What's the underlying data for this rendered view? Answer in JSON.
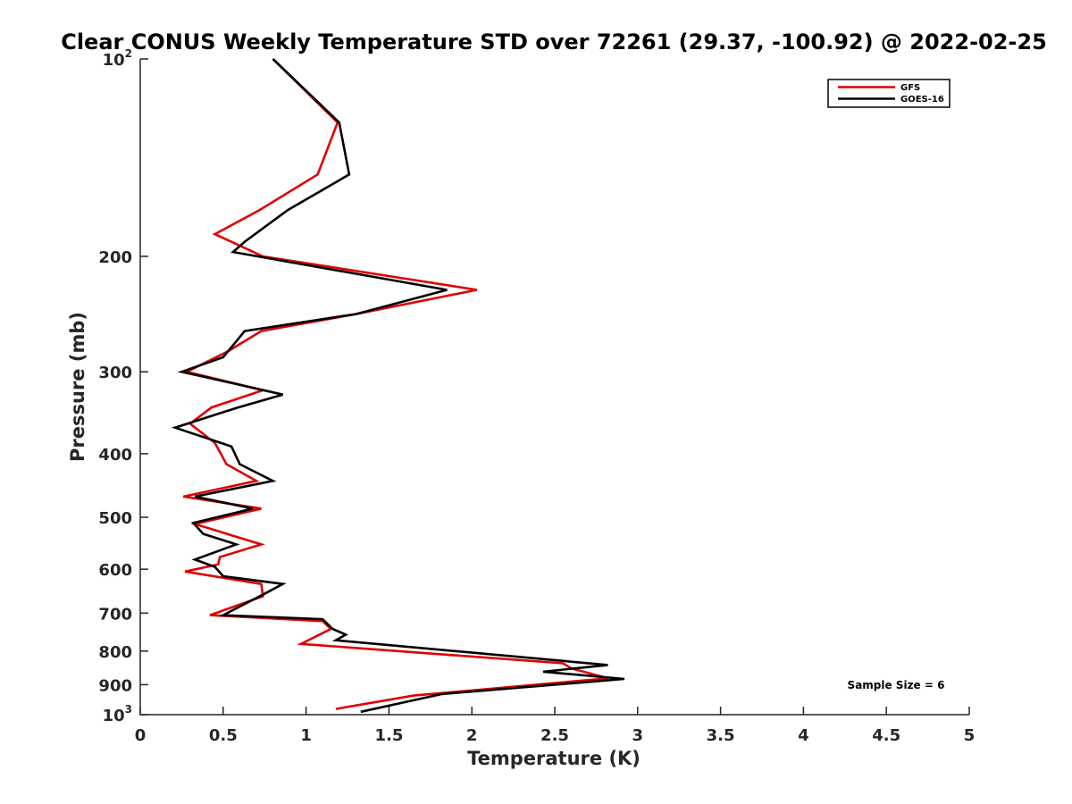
{
  "chart_data": {
    "type": "line",
    "title": "Clear CONUS Weekly Temperature STD over 72261 (29.37, -100.92) @ 2022-02-25",
    "xlabel": "Temperature (K)",
    "ylabel": "Pressure (mb)",
    "xlim": [
      0,
      5
    ],
    "ylim": [
      100,
      1000
    ],
    "y_scale": "log",
    "y_reversed": true,
    "grid": false,
    "legend_placement": "top-right",
    "x_ticks": [
      "0",
      "0.5",
      "1",
      "1.5",
      "2",
      "2.5",
      "3",
      "3.5",
      "4",
      "4.5",
      "5"
    ],
    "y_ticks": [
      {
        "value": 100,
        "label": "10",
        "exp": "2"
      },
      {
        "value": 200,
        "label": "200"
      },
      {
        "value": 300,
        "label": "300"
      },
      {
        "value": 400,
        "label": "400"
      },
      {
        "value": 500,
        "label": "500"
      },
      {
        "value": 600,
        "label": "600"
      },
      {
        "value": 700,
        "label": "700"
      },
      {
        "value": 800,
        "label": "800"
      },
      {
        "value": 900,
        "label": "900"
      },
      {
        "value": 1000,
        "label": "10",
        "exp": "3"
      }
    ],
    "annotation": "Sample Size = 6",
    "series": [
      {
        "name": "GFS",
        "color": "#e00000",
        "points": [
          [
            0.8,
            100
          ],
          [
            1.19,
            125
          ],
          [
            1.07,
            150
          ],
          [
            0.72,
            170
          ],
          [
            0.45,
            185
          ],
          [
            0.74,
            200
          ],
          [
            2.03,
            225
          ],
          [
            1.3,
            245
          ],
          [
            0.73,
            260
          ],
          [
            0.52,
            280
          ],
          [
            0.28,
            300
          ],
          [
            0.74,
            320
          ],
          [
            0.43,
            340
          ],
          [
            0.3,
            360
          ],
          [
            0.45,
            385
          ],
          [
            0.52,
            415
          ],
          [
            0.7,
            440
          ],
          [
            0.26,
            465
          ],
          [
            0.73,
            485
          ],
          [
            0.33,
            512
          ],
          [
            0.73,
            550
          ],
          [
            0.48,
            575
          ],
          [
            0.47,
            590
          ],
          [
            0.27,
            605
          ],
          [
            0.73,
            632
          ],
          [
            0.74,
            660
          ],
          [
            0.42,
            705
          ],
          [
            1.1,
            720
          ],
          [
            1.15,
            740
          ],
          [
            0.97,
            780
          ],
          [
            2.55,
            835
          ],
          [
            2.6,
            850
          ],
          [
            2.82,
            880
          ],
          [
            1.65,
            935
          ],
          [
            1.18,
            980
          ]
        ]
      },
      {
        "name": "GOES-16",
        "color": "#000000",
        "points": [
          [
            0.8,
            100
          ],
          [
            1.2,
            125
          ],
          [
            1.26,
            150
          ],
          [
            0.89,
            170
          ],
          [
            0.63,
            190
          ],
          [
            0.56,
            197
          ],
          [
            1.85,
            225
          ],
          [
            1.3,
            245
          ],
          [
            0.63,
            260
          ],
          [
            0.5,
            285
          ],
          [
            0.25,
            300
          ],
          [
            0.86,
            325
          ],
          [
            0.59,
            340
          ],
          [
            0.21,
            365
          ],
          [
            0.55,
            390
          ],
          [
            0.6,
            415
          ],
          [
            0.8,
            440
          ],
          [
            0.33,
            465
          ],
          [
            0.68,
            485
          ],
          [
            0.32,
            510
          ],
          [
            0.38,
            530
          ],
          [
            0.58,
            550
          ],
          [
            0.33,
            580
          ],
          [
            0.45,
            595
          ],
          [
            0.5,
            615
          ],
          [
            0.86,
            632
          ],
          [
            0.77,
            650
          ],
          [
            0.5,
            705
          ],
          [
            1.1,
            715
          ],
          [
            1.16,
            740
          ],
          [
            1.24,
            755
          ],
          [
            1.18,
            770
          ],
          [
            2.82,
            840
          ],
          [
            2.43,
            860
          ],
          [
            2.92,
            882
          ],
          [
            1.82,
            930
          ],
          [
            1.33,
            990
          ]
        ]
      }
    ]
  }
}
